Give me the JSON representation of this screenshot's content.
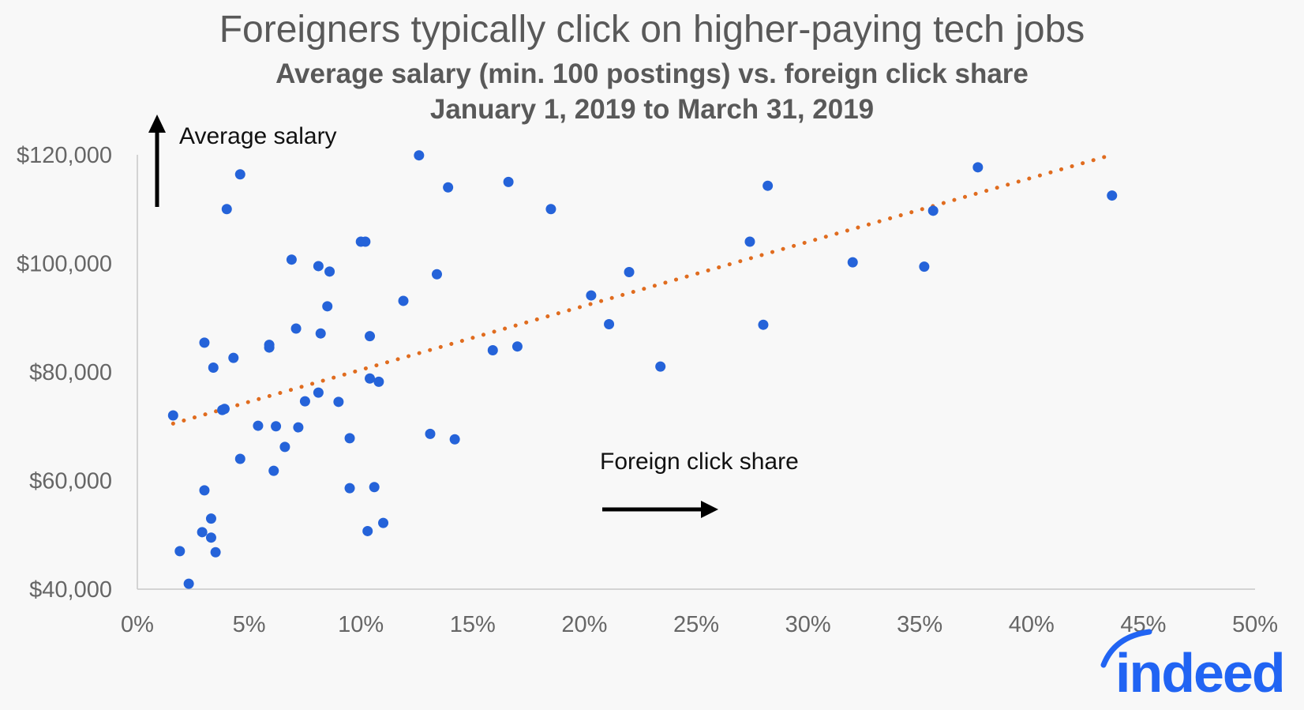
{
  "chart_data": {
    "type": "scatter",
    "title": "Foreigners typically click on higher-paying tech jobs",
    "subtitle": "Average salary (min. 100 postings) vs. foreign click share",
    "date_range": "January 1, 2019 to March 31, 2019",
    "xlabel": "Foreign click share",
    "ylabel": "Average salary",
    "xlim": [
      0,
      50
    ],
    "ylim": [
      40000,
      120000
    ],
    "x_ticks": [
      "0%",
      "5%",
      "10%",
      "15%",
      "20%",
      "25%",
      "30%",
      "35%",
      "40%",
      "45%",
      "50%"
    ],
    "y_ticks": [
      "$40,000",
      "$60,000",
      "$80,000",
      "$100,000",
      "$120,000"
    ],
    "grid": false,
    "point_color": "#2563d9",
    "trendline": {
      "style": "dotted",
      "color": "#e06c1f",
      "x": [
        1.6,
        43.6
      ],
      "y": [
        70500,
        120000
      ]
    },
    "points": [
      [
        1.6,
        72000
      ],
      [
        1.9,
        47000
      ],
      [
        2.3,
        41000
      ],
      [
        2.9,
        50500
      ],
      [
        3.0,
        58200
      ],
      [
        3.0,
        85400
      ],
      [
        3.3,
        49500
      ],
      [
        3.3,
        53000
      ],
      [
        3.4,
        80800
      ],
      [
        3.5,
        46800
      ],
      [
        3.8,
        73000
      ],
      [
        3.9,
        73200
      ],
      [
        4.0,
        110000
      ],
      [
        4.3,
        82600
      ],
      [
        4.6,
        64000
      ],
      [
        4.6,
        116400
      ],
      [
        5.4,
        70100
      ],
      [
        5.9,
        84500
      ],
      [
        5.9,
        85000
      ],
      [
        6.1,
        61800
      ],
      [
        6.2,
        70000
      ],
      [
        6.6,
        66200
      ],
      [
        6.9,
        100700
      ],
      [
        7.1,
        88000
      ],
      [
        7.2,
        69800
      ],
      [
        7.5,
        74600
      ],
      [
        8.1,
        76200
      ],
      [
        8.1,
        99500
      ],
      [
        8.2,
        87100
      ],
      [
        8.5,
        92100
      ],
      [
        8.6,
        98500
      ],
      [
        9.0,
        74500
      ],
      [
        9.5,
        67800
      ],
      [
        9.5,
        58600
      ],
      [
        10.0,
        104000
      ],
      [
        10.2,
        104000
      ],
      [
        10.3,
        50700
      ],
      [
        10.4,
        86600
      ],
      [
        10.4,
        78800
      ],
      [
        10.6,
        58800
      ],
      [
        10.8,
        78200
      ],
      [
        11.0,
        52200
      ],
      [
        11.9,
        93100
      ],
      [
        12.6,
        119900
      ],
      [
        13.1,
        68600
      ],
      [
        13.4,
        98000
      ],
      [
        13.9,
        114000
      ],
      [
        14.2,
        67600
      ],
      [
        15.9,
        84000
      ],
      [
        16.6,
        115000
      ],
      [
        17.0,
        84700
      ],
      [
        18.5,
        110000
      ],
      [
        20.3,
        94100
      ],
      [
        21.1,
        88800
      ],
      [
        22.0,
        98400
      ],
      [
        23.4,
        81000
      ],
      [
        27.4,
        104000
      ],
      [
        28.0,
        88700
      ],
      [
        28.2,
        114300
      ],
      [
        32.0,
        100200
      ],
      [
        35.2,
        99400
      ],
      [
        35.6,
        109700
      ],
      [
        37.6,
        117700
      ],
      [
        43.6,
        112500
      ]
    ]
  },
  "logo": {
    "text": "indeed",
    "color": "#2164f3"
  }
}
